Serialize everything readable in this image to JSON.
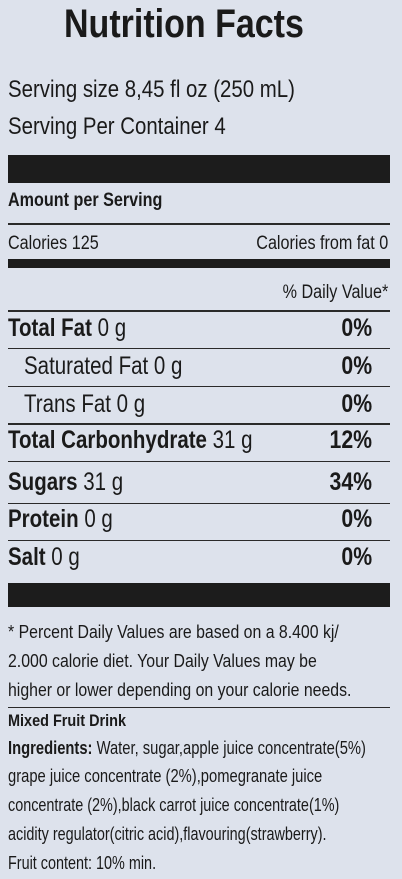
{
  "title": "Nutrition Facts",
  "serving": [
    "Serving size 8,45 fl oz (250 mL)",
    "Serving Per Container 4"
  ],
  "amount_header": "Amount per Serving",
  "calories": "Calories 125",
  "calories_from_fat": "Calories from fat 0",
  "dv_header": "% Daily Value*",
  "rows": [
    {
      "name": "Total Fat",
      "amount": "0 g",
      "dv": "0%"
    },
    {
      "name": "Saturated Fat",
      "amount": "0 g",
      "dv": "0%"
    },
    {
      "name": "Trans Fat",
      "amount": "0 g",
      "dv": "0%"
    },
    {
      "name": "Total Carbonhydrate",
      "amount": "31 g",
      "dv": "12%"
    },
    {
      "name": "Sugars",
      "amount": "31 g",
      "dv": "34%"
    },
    {
      "name": "Protein",
      "amount": "0 g",
      "dv": "0%"
    },
    {
      "name": "Salt",
      "amount": "0 g",
      "dv": "0%"
    }
  ],
  "footnote": [
    "* Percent Daily Values are based on a 8.400 kj/",
    "2.000 calorie diet.  Your Daily Values may be",
    "higher or lower depending on your calorie needs."
  ],
  "product": "Mixed Fruit Drink",
  "ingredients_label": "Ingredients:",
  "ingredients": [
    " Water, sugar,apple juice concentrate(5%)",
    "grape juice concentrate (2%),pomegranate juice",
    "concentrate (2%),black carrot juice concentrate(1%)",
    "acidity regulator(citric acid),flavouring(strawberry)."
  ],
  "fruit_content": "Fruit content: 10% min."
}
